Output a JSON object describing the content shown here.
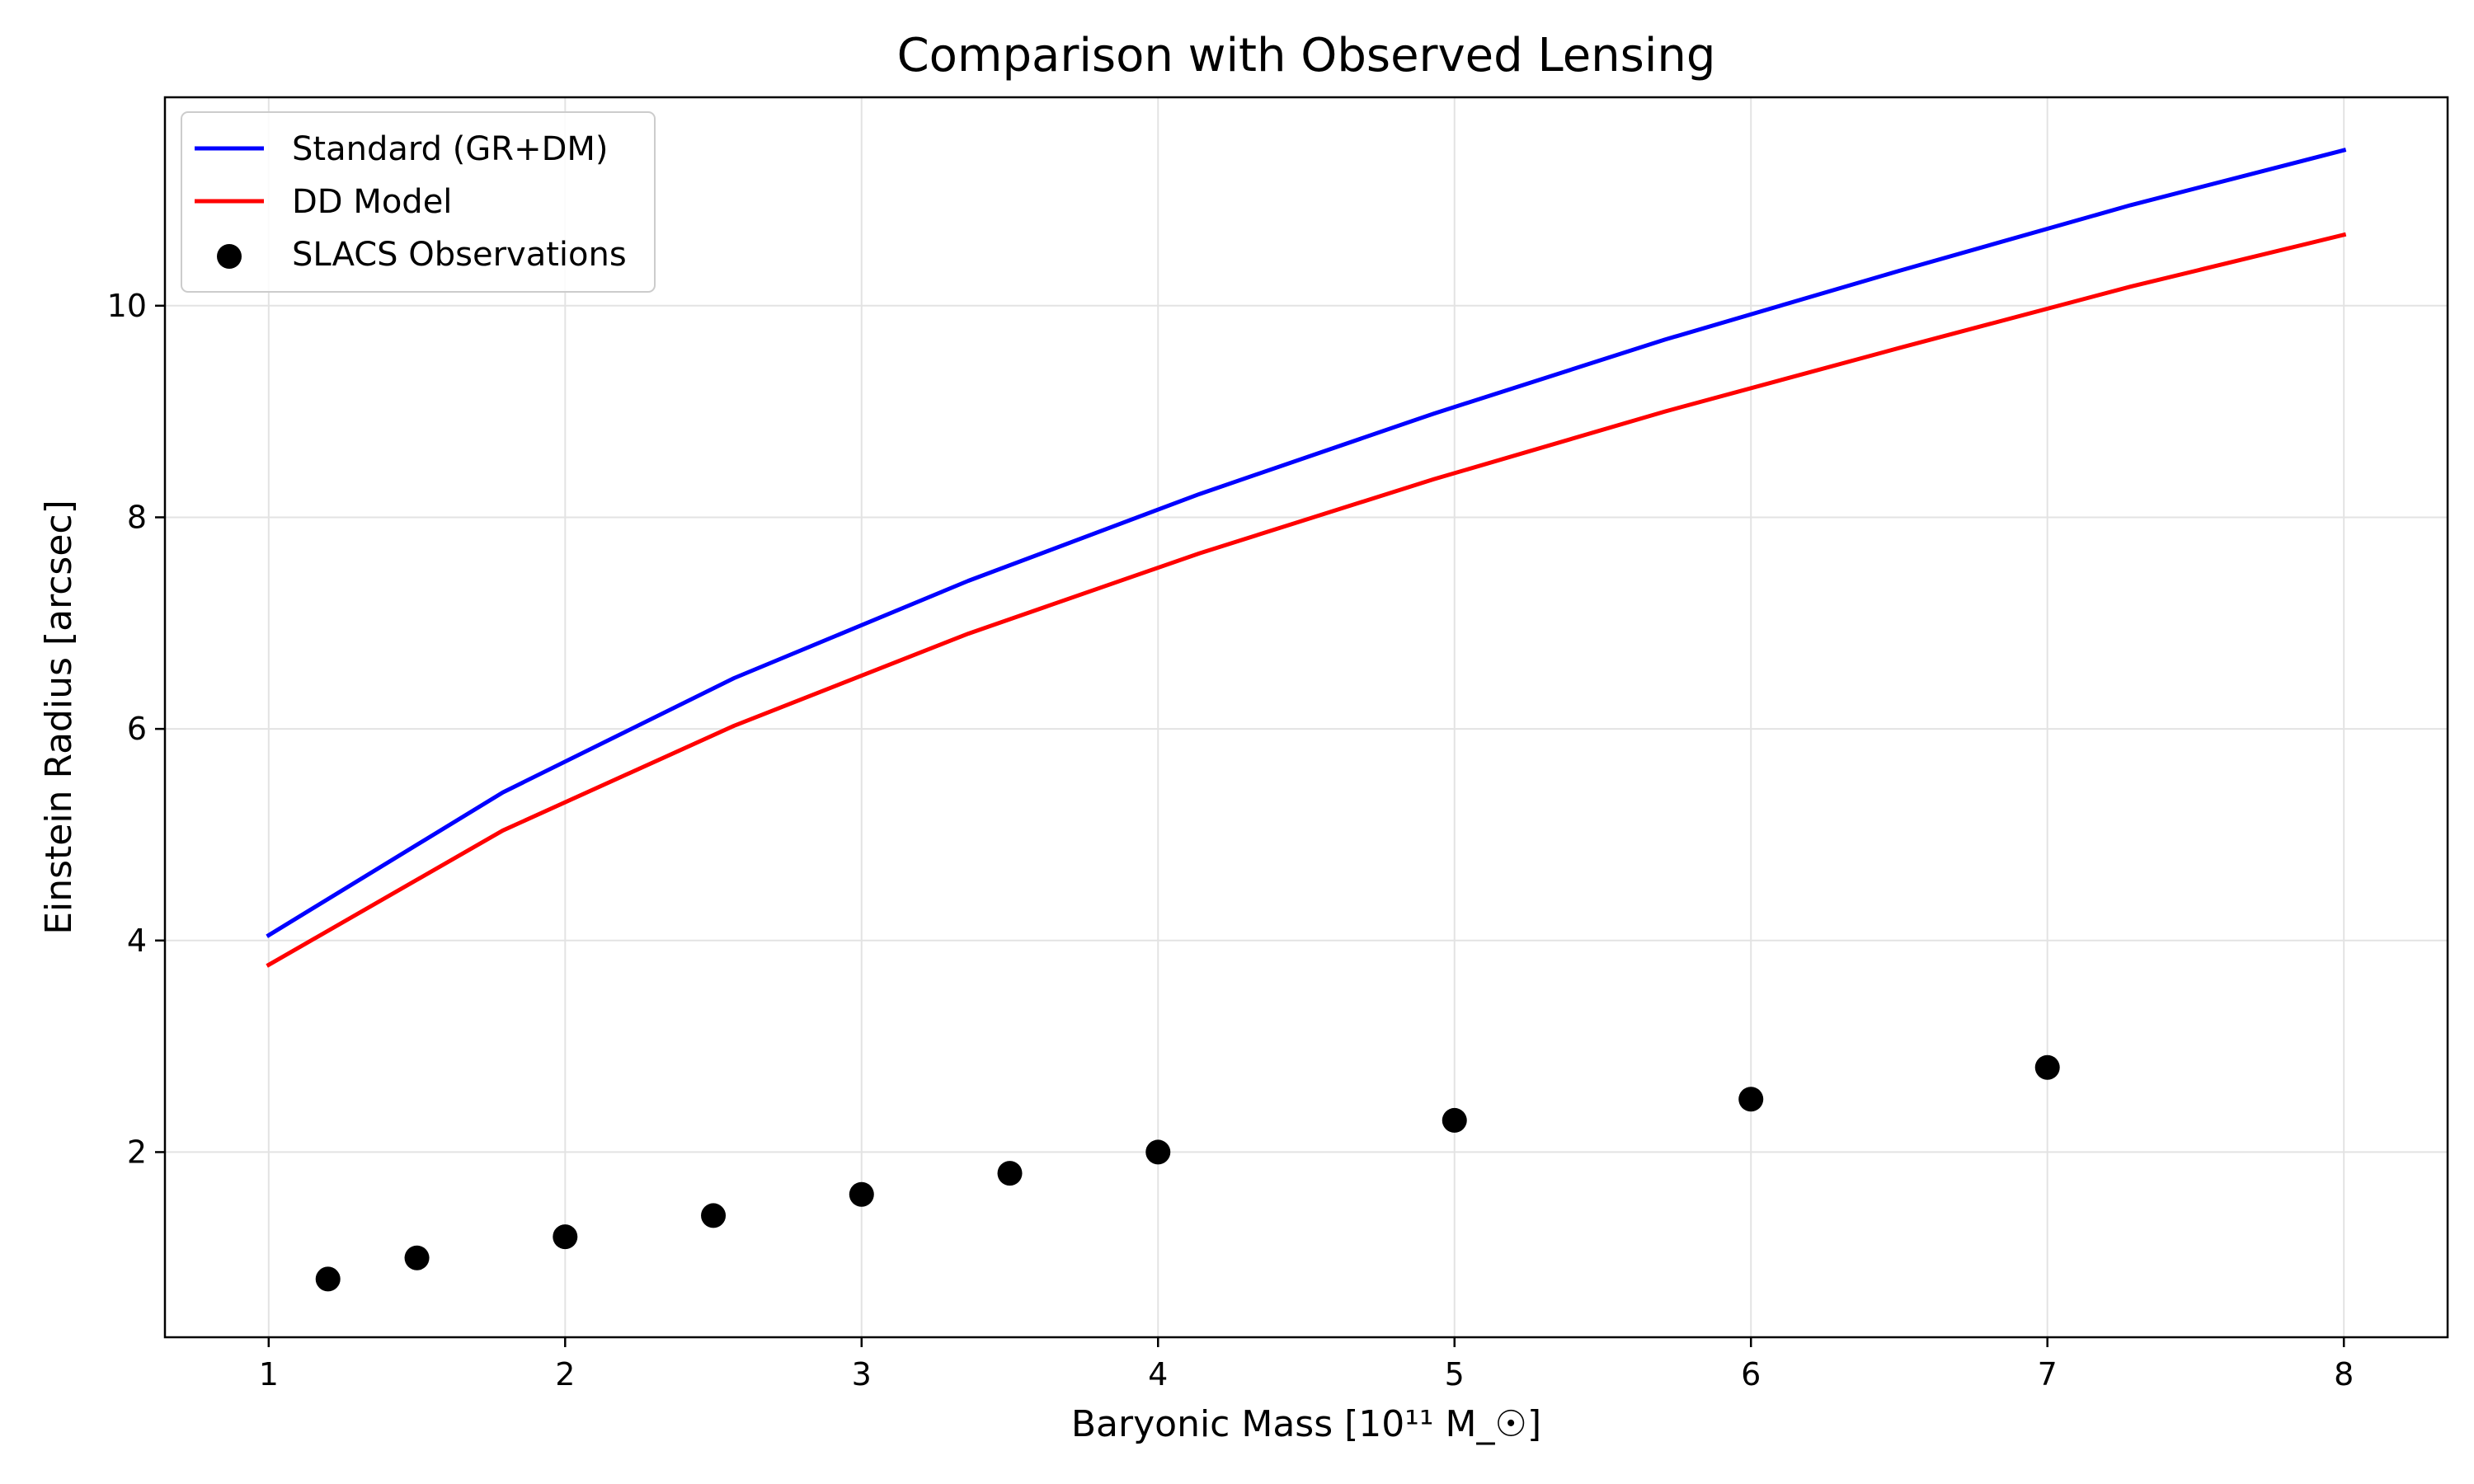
{
  "chart_data": {
    "type": "line",
    "title": "Comparison with Observed Lensing",
    "xlabel": "Baryonic Mass [10¹¹ M_☉]",
    "ylabel": "Einstein Radius [arcsec]",
    "xlim": [
      0.65,
      8.35
    ],
    "ylim": [
      0.25,
      11.97
    ],
    "xticks": [
      1,
      2,
      3,
      4,
      5,
      6,
      7,
      8
    ],
    "yticks": [
      2,
      4,
      6,
      8,
      10
    ],
    "grid": true,
    "legend_position": "top-left",
    "series": [
      {
        "name": "Standard (GR+DM)",
        "kind": "line",
        "color": "#0000ff",
        "x": [
          1.0,
          1.79,
          2.57,
          3.36,
          4.14,
          4.93,
          5.71,
          6.5,
          7.28,
          8.0
        ],
        "y": [
          4.05,
          5.4,
          6.48,
          7.4,
          8.22,
          8.98,
          9.68,
          10.33,
          10.95,
          11.47
        ]
      },
      {
        "name": "DD Model",
        "kind": "line",
        "color": "#ff0000",
        "x": [
          1.0,
          1.79,
          2.57,
          3.36,
          4.14,
          4.93,
          5.71,
          6.5,
          7.28,
          8.0
        ],
        "y": [
          3.77,
          5.04,
          6.03,
          6.9,
          7.66,
          8.36,
          9.0,
          9.6,
          10.18,
          10.67
        ]
      },
      {
        "name": "SLACS Observations",
        "kind": "scatter",
        "color": "#000000",
        "x": [
          1.2,
          1.5,
          2.0,
          2.5,
          3.0,
          3.5,
          4.0,
          5.0,
          6.0,
          7.0
        ],
        "y": [
          0.8,
          1.0,
          1.2,
          1.4,
          1.6,
          1.8,
          2.0,
          2.3,
          2.5,
          2.8
        ]
      }
    ]
  }
}
